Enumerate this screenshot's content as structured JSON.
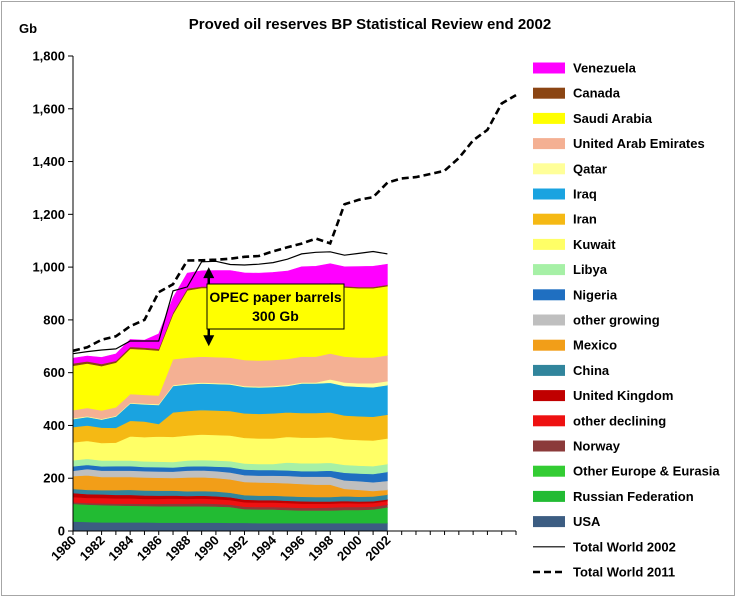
{
  "chart_data": {
    "type": "area",
    "title": "Proved oil reserves BP Statistical Review  end 2002",
    "ylabel": "Gb",
    "xlabel": "",
    "ylim": [
      0,
      1800
    ],
    "xlim": [
      1980,
      2011
    ],
    "y_ticks": [
      "0",
      "200",
      "400",
      "600",
      "800",
      "1,000",
      "1,200",
      "1,400",
      "1,600",
      "1,800"
    ],
    "x_ticks": [
      "1980",
      "1982",
      "1984",
      "1986",
      "1988",
      "1990",
      "1992",
      "1994",
      "1996",
      "1998",
      "2000",
      "2002"
    ],
    "grid": false,
    "legend_position": "right",
    "stacked": true,
    "x": [
      1980,
      1981,
      1982,
      1983,
      1984,
      1985,
      1986,
      1987,
      1988,
      1989,
      1990,
      1991,
      1992,
      1993,
      1994,
      1995,
      1996,
      1997,
      1998,
      1999,
      2000,
      2001,
      2002
    ],
    "series": [
      {
        "name": "USA",
        "color": "#3c5d82",
        "values": [
          36,
          34,
          33,
          33,
          33,
          33,
          32,
          32,
          32,
          32,
          32,
          31,
          31,
          30,
          30,
          30,
          30,
          30,
          30,
          30,
          30,
          30,
          30
        ]
      },
      {
        "name": "Russian Federation",
        "color": "#22bb33",
        "values": [
          67,
          66,
          65,
          64,
          63,
          62,
          62,
          62,
          62,
          62,
          61,
          60,
          52,
          52,
          52,
          50,
          48,
          48,
          48,
          50,
          50,
          52,
          60
        ]
      },
      {
        "name": "Other Europe & Eurasia",
        "color": "#33cc33",
        "values": [
          0,
          0,
          0,
          0,
          0,
          0,
          0,
          0,
          0,
          0,
          0,
          0,
          0,
          0,
          0,
          0,
          0,
          0,
          0,
          0,
          0,
          0,
          0
        ]
      },
      {
        "name": "Norway",
        "color": "#8b3a3a",
        "values": [
          6,
          6,
          7,
          7,
          8,
          8,
          9,
          10,
          10,
          11,
          10,
          9,
          9,
          9,
          9,
          10,
          10,
          10,
          11,
          11,
          11,
          10,
          10
        ]
      },
      {
        "name": "other declining",
        "color": "#ee1111",
        "values": [
          20,
          20,
          20,
          20,
          20,
          19,
          19,
          19,
          18,
          18,
          18,
          18,
          17,
          17,
          17,
          16,
          16,
          16,
          15,
          15,
          14,
          14,
          14
        ]
      },
      {
        "name": "United Kingdom",
        "color": "#c00000",
        "values": [
          15,
          14,
          14,
          13,
          13,
          13,
          12,
          12,
          11,
          11,
          11,
          10,
          10,
          9,
          9,
          9,
          9,
          8,
          8,
          8,
          7,
          7,
          6
        ]
      },
      {
        "name": "China",
        "color": "#31859c",
        "values": [
          16,
          16,
          16,
          18,
          19,
          19,
          19,
          18,
          18,
          18,
          18,
          17,
          17,
          17,
          17,
          17,
          17,
          17,
          17,
          18,
          18,
          18,
          18
        ]
      },
      {
        "name": "Mexico",
        "color": "#f29e18",
        "values": [
          48,
          55,
          50,
          50,
          49,
          49,
          49,
          48,
          52,
          52,
          51,
          51,
          50,
          50,
          49,
          49,
          48,
          47,
          47,
          28,
          26,
          21,
          18
        ]
      },
      {
        "name": "other growing",
        "color": "#bfbfbf",
        "values": [
          20,
          24,
          24,
          24,
          24,
          24,
          24,
          24,
          26,
          26,
          26,
          26,
          26,
          26,
          27,
          28,
          28,
          30,
          30,
          32,
          33,
          33,
          34
        ]
      },
      {
        "name": "Nigeria",
        "color": "#1f6fc1",
        "values": [
          17,
          16,
          16,
          17,
          17,
          16,
          16,
          16,
          16,
          16,
          17,
          20,
          21,
          21,
          21,
          21,
          21,
          21,
          23,
          29,
          29,
          31,
          34
        ]
      },
      {
        "name": "Libya",
        "color": "#a6f0a6",
        "values": [
          23,
          23,
          22,
          22,
          21,
          21,
          21,
          21,
          22,
          23,
          23,
          23,
          23,
          23,
          23,
          30,
          30,
          30,
          30,
          30,
          30,
          30,
          30
        ]
      },
      {
        "name": "Kuwait",
        "color": "#ffff66",
        "values": [
          68,
          68,
          67,
          67,
          92,
          92,
          95,
          95,
          95,
          97,
          97,
          97,
          97,
          97,
          97,
          97,
          97,
          97,
          97,
          97,
          97,
          97,
          97
        ]
      },
      {
        "name": "Iran",
        "color": "#f5b914",
        "values": [
          58,
          58,
          58,
          56,
          59,
          59,
          48,
          93,
          93,
          93,
          93,
          93,
          93,
          93,
          95,
          93,
          93,
          93,
          94,
          90,
          90,
          90,
          90
        ]
      },
      {
        "name": "Iraq",
        "color": "#1aa3e0",
        "values": [
          30,
          32,
          30,
          43,
          65,
          65,
          72,
          100,
          100,
          100,
          100,
          100,
          100,
          100,
          100,
          100,
          112,
          112,
          112,
          112,
          112,
          112,
          112
        ]
      },
      {
        "name": "Qatar",
        "color": "#ffff99",
        "values": [
          4,
          3,
          3,
          3,
          3,
          3,
          3,
          3,
          4,
          4,
          4,
          4,
          4,
          4,
          4,
          4,
          4,
          4,
          13,
          13,
          13,
          15,
          15
        ]
      },
      {
        "name": "United Arab Emirates",
        "color": "#f4b093",
        "values": [
          30,
          32,
          32,
          32,
          33,
          33,
          33,
          98,
          98,
          98,
          98,
          98,
          98,
          98,
          98,
          98,
          98,
          98,
          98,
          98,
          98,
          98,
          98
        ]
      },
      {
        "name": "Saudi Arabia",
        "color": "#ffff00",
        "values": [
          168,
          168,
          168,
          169,
          172,
          172,
          170,
          170,
          255,
          260,
          262,
          261,
          262,
          262,
          262,
          262,
          262,
          262,
          262,
          262,
          262,
          262,
          262
        ]
      },
      {
        "name": "Canada",
        "color": "#8b4513",
        "values": [
          9,
          8,
          8,
          7,
          7,
          7,
          7,
          7,
          7,
          6,
          6,
          6,
          5,
          5,
          5,
          5,
          5,
          5,
          5,
          5,
          5,
          5,
          5
        ]
      },
      {
        "name": "Venezuela",
        "color": "#ff00ff",
        "values": [
          20,
          20,
          25,
          26,
          28,
          28,
          56,
          56,
          58,
          59,
          60,
          63,
          63,
          64,
          65,
          66,
          73,
          75,
          73,
          73,
          77,
          78,
          78
        ]
      }
    ],
    "lines": [
      {
        "name": "Total World 2002",
        "color": "#000000",
        "style": "solid",
        "x": [
          1980,
          1981,
          1982,
          1983,
          1984,
          1985,
          1986,
          1987,
          1988,
          1989,
          1990,
          1991,
          1992,
          1993,
          1994,
          1995,
          1996,
          1997,
          1998,
          1999,
          2000,
          2001,
          2002
        ],
        "values": [
          672,
          680,
          686,
          690,
          720,
          720,
          720,
          910,
          925,
          1020,
          1022,
          1010,
          1008,
          1011,
          1017,
          1030,
          1050,
          1056,
          1058,
          1045,
          1052,
          1059,
          1050
        ]
      },
      {
        "name": "Total World 2011",
        "color": "#000000",
        "style": "dashed",
        "x": [
          1980,
          1981,
          1982,
          1983,
          1984,
          1985,
          1986,
          1987,
          1988,
          1989,
          1990,
          1991,
          1992,
          1993,
          1994,
          1995,
          1996,
          1997,
          1998,
          1999,
          2000,
          2001,
          2002,
          2003,
          2004,
          2005,
          2006,
          2007,
          2008,
          2009,
          2010,
          2011
        ],
        "values": [
          683,
          696,
          725,
          738,
          776,
          800,
          905,
          935,
          1025,
          1026,
          1028,
          1032,
          1039,
          1042,
          1060,
          1075,
          1089,
          1108,
          1090,
          1238,
          1255,
          1265,
          1320,
          1336,
          1341,
          1353,
          1365,
          1413,
          1480,
          1520,
          1620,
          1652
        ]
      }
    ],
    "annotations": [
      {
        "text_lines": [
          "OPEC paper barrels",
          "300 Gb"
        ],
        "arrow_x": 1989.5,
        "arrow_from": 700,
        "arrow_to": 1000
      }
    ]
  }
}
